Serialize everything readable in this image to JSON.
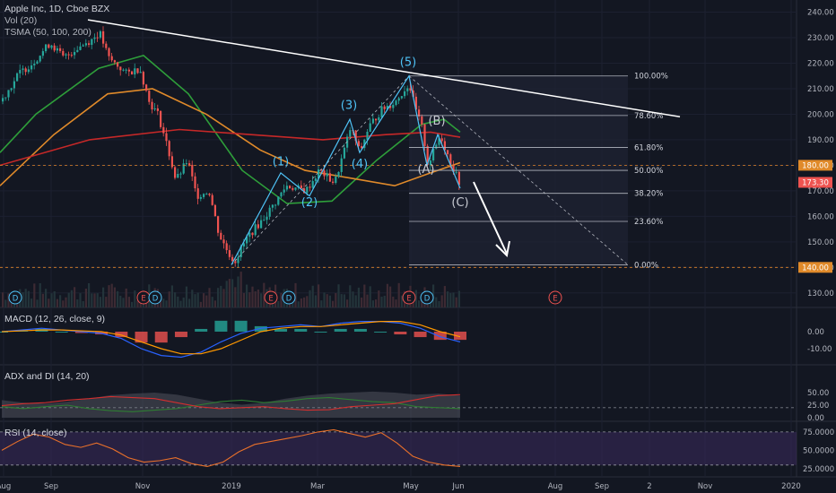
{
  "symbol": {
    "title": "Apple Inc, 1D, Cboe BZX",
    "volume_label": "Vol (20)",
    "tsma_label": "TSMA (50, 100, 200)"
  },
  "colors": {
    "background": "#131722",
    "up": "#26a69a",
    "down": "#ef5350",
    "accent": "#4fc3f7",
    "sma50": "#2e9e3a",
    "sma100": "#e08a2a",
    "sma200": "#c62828"
  },
  "chart_data": [
    {
      "type": "candlestick",
      "title": "Apple Inc, 1D, Cboe BZX",
      "ylim": [
        125,
        243
      ],
      "y_ticks": [
        "240.00",
        "230.00",
        "220.00",
        "210.00",
        "200.00",
        "190.00",
        "180.00",
        "170.00",
        "160.00",
        "150.00",
        "140.00",
        "130.00"
      ],
      "x_ticks": [
        "Aug",
        "Sep",
        "Nov",
        "2019",
        "Mar",
        "May",
        "Jun",
        "Aug",
        "Sep",
        "2",
        "Nov",
        "2020"
      ],
      "price_markers": [
        {
          "label": "180.00",
          "value": 180
        },
        {
          "label": "173.30",
          "value": 173.3
        },
        {
          "label": "140.00",
          "value": 140
        }
      ],
      "price_path": [
        {
          "x": 0,
          "y": 205
        },
        {
          "x": 20,
          "y": 216
        },
        {
          "x": 35,
          "y": 220
        },
        {
          "x": 55,
          "y": 228
        },
        {
          "x": 70,
          "y": 222
        },
        {
          "x": 85,
          "y": 226
        },
        {
          "x": 100,
          "y": 229
        },
        {
          "x": 110,
          "y": 232
        },
        {
          "x": 120,
          "y": 222
        },
        {
          "x": 140,
          "y": 216
        },
        {
          "x": 155,
          "y": 218
        },
        {
          "x": 165,
          "y": 205
        },
        {
          "x": 175,
          "y": 200
        },
        {
          "x": 185,
          "y": 188
        },
        {
          "x": 195,
          "y": 174
        },
        {
          "x": 208,
          "y": 182
        },
        {
          "x": 218,
          "y": 168
        },
        {
          "x": 232,
          "y": 170
        },
        {
          "x": 243,
          "y": 153
        },
        {
          "x": 250,
          "y": 148
        },
        {
          "x": 260,
          "y": 142
        },
        {
          "x": 275,
          "y": 152
        },
        {
          "x": 290,
          "y": 158
        },
        {
          "x": 305,
          "y": 165
        },
        {
          "x": 318,
          "y": 172
        },
        {
          "x": 340,
          "y": 170
        },
        {
          "x": 355,
          "y": 178
        },
        {
          "x": 372,
          "y": 173
        },
        {
          "x": 390,
          "y": 195
        },
        {
          "x": 400,
          "y": 185
        },
        {
          "x": 410,
          "y": 195
        },
        {
          "x": 425,
          "y": 202
        },
        {
          "x": 440,
          "y": 205
        },
        {
          "x": 455,
          "y": 212
        },
        {
          "x": 462,
          "y": 202
        },
        {
          "x": 470,
          "y": 194
        },
        {
          "x": 476,
          "y": 180
        },
        {
          "x": 483,
          "y": 186
        },
        {
          "x": 490,
          "y": 192
        },
        {
          "x": 498,
          "y": 184
        },
        {
          "x": 505,
          "y": 178
        },
        {
          "x": 513,
          "y": 172
        }
      ],
      "moving_averages": [
        {
          "name": "SMA 50",
          "color": "#2e9e3a",
          "points": [
            {
              "x": 0,
              "y": 185
            },
            {
              "x": 40,
              "y": 200
            },
            {
              "x": 110,
              "y": 218
            },
            {
              "x": 160,
              "y": 223
            },
            {
              "x": 210,
              "y": 208
            },
            {
              "x": 270,
              "y": 178
            },
            {
              "x": 320,
              "y": 165
            },
            {
              "x": 370,
              "y": 166
            },
            {
              "x": 420,
              "y": 182
            },
            {
              "x": 470,
              "y": 196
            },
            {
              "x": 495,
              "y": 198
            },
            {
              "x": 513,
              "y": 193
            }
          ]
        },
        {
          "name": "SMA 100",
          "color": "#e08a2a",
          "points": [
            {
              "x": 0,
              "y": 172
            },
            {
              "x": 60,
              "y": 192
            },
            {
              "x": 120,
              "y": 208
            },
            {
              "x": 170,
              "y": 210
            },
            {
              "x": 230,
              "y": 200
            },
            {
              "x": 290,
              "y": 186
            },
            {
              "x": 340,
              "y": 178
            },
            {
              "x": 390,
              "y": 175
            },
            {
              "x": 440,
              "y": 172
            },
            {
              "x": 480,
              "y": 177
            },
            {
              "x": 513,
              "y": 181
            }
          ]
        },
        {
          "name": "SMA 200",
          "color": "#c62828",
          "points": [
            {
              "x": 0,
              "y": 180
            },
            {
              "x": 100,
              "y": 190
            },
            {
              "x": 200,
              "y": 194
            },
            {
              "x": 280,
              "y": 192
            },
            {
              "x": 360,
              "y": 190
            },
            {
              "x": 430,
              "y": 192
            },
            {
              "x": 480,
              "y": 193
            },
            {
              "x": 513,
              "y": 191
            }
          ]
        }
      ],
      "annotations": {
        "fib_levels": [
          {
            "label": "100.00%",
            "value": 215
          },
          {
            "label": "78.60%",
            "value": 199.5
          },
          {
            "label": "61.80%",
            "value": 187
          },
          {
            "label": "50.00%",
            "value": 178
          },
          {
            "label": "38.20%",
            "value": 169
          },
          {
            "label": "23.60%",
            "value": 158
          },
          {
            "label": "0.00%",
            "value": 141
          }
        ],
        "wave_labels": [
          {
            "label": "(1)",
            "x": 313,
            "y": 180
          },
          {
            "label": "(2)",
            "x": 345,
            "y": 164
          },
          {
            "label": "(3)",
            "x": 389,
            "y": 202
          },
          {
            "label": "(4)",
            "x": 401,
            "y": 179
          },
          {
            "label": "(5)",
            "x": 455,
            "y": 219
          },
          {
            "label": "(A)",
            "x": 475,
            "y": 177
          },
          {
            "label": "(B)",
            "x": 487,
            "y": 196
          },
          {
            "label": "(C)",
            "x": 513,
            "y": 164
          }
        ],
        "trendline": [
          {
            "x": 98,
            "y": 237
          },
          {
            "x": 758,
            "y": 199
          }
        ],
        "event_markers": [
          {
            "label": "D",
            "x": 17
          },
          {
            "label": "E",
            "x": 160
          },
          {
            "label": "D",
            "x": 173
          },
          {
            "label": "E",
            "x": 302
          },
          {
            "label": "D",
            "x": 322
          },
          {
            "label": "E",
            "x": 456
          },
          {
            "label": "D",
            "x": 476
          },
          {
            "label": "E",
            "x": 619
          }
        ]
      }
    },
    {
      "type": "histogram",
      "title": "MACD (12, 26, close, 9)",
      "y_ticks": [
        "0.00",
        "-10.00"
      ],
      "macd_line": [
        0,
        1,
        2,
        1,
        0,
        -1,
        -4,
        -10,
        -14,
        -15,
        -12,
        -6,
        -1,
        2,
        3,
        4,
        3,
        5,
        6,
        6,
        5,
        2,
        -3,
        -6
      ],
      "signal_line": [
        0,
        0.5,
        1,
        1,
        0.5,
        0,
        -2,
        -6,
        -10,
        -13,
        -13,
        -10,
        -5,
        0,
        2,
        3,
        3,
        4,
        5,
        6,
        6,
        4,
        0,
        -3
      ]
    },
    {
      "type": "line",
      "title": "ADX and DI (14, 20)",
      "y_ticks": [
        "50.00",
        "25.00",
        "0.00"
      ],
      "adx": [
        35,
        30,
        28,
        32,
        38,
        45,
        48,
        50,
        46,
        38,
        30,
        26,
        30,
        38,
        44,
        48,
        50,
        52,
        50,
        46,
        48,
        44
      ],
      "plus_di": [
        22,
        18,
        22,
        25,
        18,
        14,
        12,
        15,
        18,
        25,
        32,
        35,
        30,
        33,
        38,
        40,
        36,
        32,
        30,
        22,
        20,
        18
      ],
      "minus_di": [
        24,
        28,
        30,
        35,
        38,
        42,
        40,
        38,
        30,
        22,
        18,
        20,
        22,
        18,
        15,
        16,
        22,
        25,
        28,
        36,
        44,
        46
      ]
    },
    {
      "type": "line",
      "title": "RSI (14, close)",
      "y_ticks": [
        "75.0000",
        "50.0000",
        "25.0000"
      ],
      "rsi": [
        50,
        62,
        72,
        68,
        58,
        54,
        60,
        52,
        40,
        34,
        36,
        40,
        32,
        28,
        34,
        48,
        58,
        62,
        66,
        70,
        75,
        78,
        73,
        68,
        74,
        60,
        42,
        34,
        30,
        28
      ]
    }
  ]
}
